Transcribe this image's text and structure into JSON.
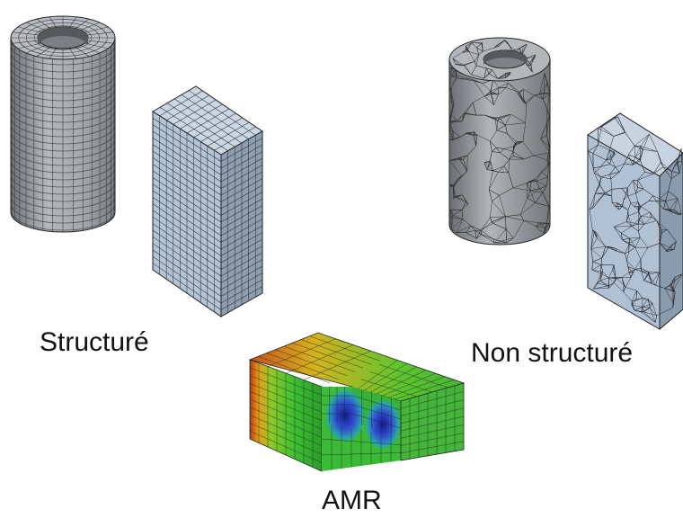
{
  "captions": {
    "structured": "Structuré",
    "unstructured": "Non structuré",
    "amr": "AMR"
  },
  "colors": {
    "mesh_grey": "#9ea1a6",
    "mesh_blue": "#aebfd4",
    "edge": "#222222",
    "amr_low": "#1f2fb0",
    "amr_mid": "#2fb82f",
    "amr_high": "#b32a12"
  },
  "meshes": [
    {
      "name": "structured-cylinder",
      "mesh_type": "structured"
    },
    {
      "name": "structured-box",
      "mesh_type": "structured"
    },
    {
      "name": "unstructured-cylinder",
      "mesh_type": "unstructured"
    },
    {
      "name": "unstructured-box",
      "mesh_type": "unstructured"
    },
    {
      "name": "amr-block",
      "mesh_type": "adaptive"
    }
  ]
}
